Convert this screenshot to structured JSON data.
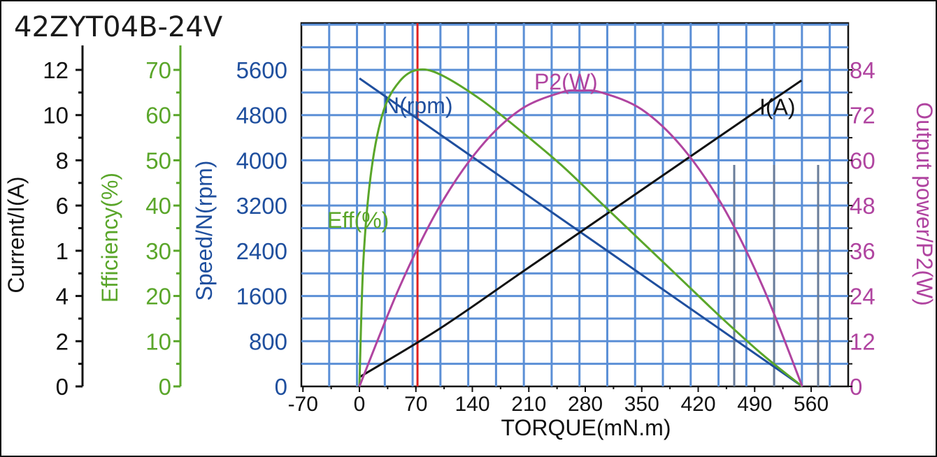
{
  "chart_data": {
    "type": "line",
    "title": "42ZYT04B-24V",
    "xlabel": "TORQUE(mN.m)",
    "xlim": [
      -70,
      560
    ],
    "x_ticks": [
      "-70",
      "0",
      "70",
      "140",
      "210",
      "280",
      "350",
      "420",
      "490",
      "560"
    ],
    "y_axes": [
      {
        "id": "current",
        "label": "Current/I(A)",
        "color": "#111111",
        "range": [
          0,
          12
        ],
        "ticks": [
          "0",
          "2",
          "4",
          "1",
          "6",
          "8",
          "10",
          "12"
        ]
      },
      {
        "id": "efficiency",
        "label": "Efficiency(%)",
        "color": "#5aa62a",
        "range": [
          0,
          70
        ],
        "ticks": [
          "0",
          "10",
          "20",
          "30",
          "40",
          "50",
          "60",
          "70"
        ]
      },
      {
        "id": "speed",
        "label": "Speed/N(rpm)",
        "color": "#1f4f9e",
        "range": [
          0,
          5600
        ],
        "ticks": [
          "0",
          "800",
          "1600",
          "2400",
          "3200",
          "4000",
          "4800",
          "5600"
        ]
      },
      {
        "id": "power",
        "label": "Output power/P2(W)",
        "color": "#b044a0",
        "range": [
          0,
          84
        ],
        "ticks": [
          "0",
          "12",
          "24",
          "36",
          "48",
          "60",
          "72",
          "84"
        ]
      }
    ],
    "marker_line": {
      "x": 72,
      "color": "#e02020"
    },
    "series": [
      {
        "name": "N(rpm)",
        "axis": "speed",
        "color": "#1f4f9e",
        "x": [
          0,
          549
        ],
        "y": [
          5450,
          0
        ]
      },
      {
        "name": "I(A)",
        "axis": "current",
        "color": "#111111",
        "x": [
          0,
          100,
          200,
          300,
          400,
          500,
          548
        ],
        "y": [
          0.35,
          2.2,
          4.3,
          6.4,
          8.5,
          10.6,
          11.6
        ]
      },
      {
        "name": "Eff(%)",
        "axis": "efficiency",
        "color": "#5aa62a",
        "x": [
          0,
          5,
          15,
          30,
          50,
          72,
          100,
          150,
          200,
          250,
          300,
          350,
          400,
          450,
          500,
          549
        ],
        "y": [
          0,
          28,
          48,
          61,
          67.5,
          70,
          69,
          63.5,
          56.5,
          49,
          40.5,
          32,
          23.5,
          15,
          7,
          0
        ]
      },
      {
        "name": "P2(W)",
        "axis": "power",
        "color": "#b044a0",
        "x": [
          0,
          50,
          100,
          150,
          200,
          250,
          274,
          300,
          350,
          400,
          450,
          500,
          549
        ],
        "y": [
          0,
          26.5,
          48,
          63.5,
          73.5,
          78,
          78.5,
          78,
          73.5,
          63.5,
          48,
          26.5,
          0
        ]
      }
    ]
  }
}
